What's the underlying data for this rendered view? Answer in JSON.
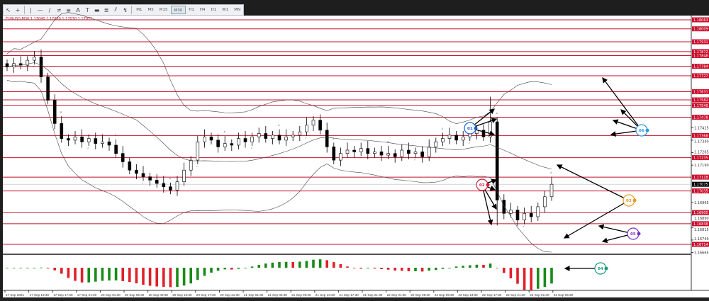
{
  "toolbar": {
    "tools": [
      {
        "icon": "cursor-icon",
        "glyph": "↖"
      },
      {
        "icon": "crosshair-icon",
        "glyph": "+"
      },
      {
        "icon": "vertical-line-icon",
        "glyph": "|"
      },
      {
        "icon": "horizontal-line-icon",
        "glyph": "—"
      },
      {
        "icon": "trendline-icon",
        "glyph": "/"
      },
      {
        "icon": "equidistant-channel-icon",
        "glyph": "≠"
      },
      {
        "icon": "fibonacci-icon",
        "glyph": "≡"
      },
      {
        "icon": "text-icon",
        "glyph": "A"
      },
      {
        "icon": "text-label-icon",
        "glyph": "T"
      },
      {
        "icon": "rectangle-icon",
        "glyph": "▬"
      },
      {
        "icon": "fibo-fan-icon",
        "glyph": "≣"
      },
      {
        "icon": "gann-icon",
        "glyph": "⫽"
      },
      {
        "icon": "arrows-icon",
        "glyph": "↯"
      }
    ],
    "timeframes": [
      "M1",
      "M5",
      "M15",
      "M30",
      "H1",
      "H4",
      "D1",
      "W1",
      "MN"
    ],
    "active_timeframe": "M30"
  },
  "chart": {
    "title": "EURUSD,M30  1.17040 1.17080 1.17030 1.17075",
    "current_price": "1.17075",
    "colors": {
      "level_line": "#c8102e",
      "level_label": "#c8102e",
      "bull": "#ffffff",
      "bear": "#000000",
      "osc_up": "#1a8a1a",
      "osc_down": "#e0202a",
      "current_label": "#000000"
    }
  },
  "chart_data": {
    "type": "candlestick",
    "symbol": "EURUSD",
    "timeframe": "M30",
    "ylim": [
      1.1664,
      1.1809
    ],
    "closes": [
      1.1778,
      1.178,
      1.1779,
      1.1782,
      1.1784,
      1.1772,
      1.1758,
      1.1744,
      1.1735,
      1.1734,
      1.1736,
      1.1733,
      1.1735,
      1.1732,
      1.1733,
      1.1731,
      1.1726,
      1.1721,
      1.1716,
      1.1714,
      1.1712,
      1.171,
      1.1708,
      1.1706,
      1.1704,
      1.1709,
      1.1716,
      1.1722,
      1.1733,
      1.1736,
      1.1734,
      1.173,
      1.1732,
      1.1731,
      1.1735,
      1.1733,
      1.1736,
      1.1738,
      1.1735,
      1.1737,
      1.1734,
      1.1736,
      1.1737,
      1.1739,
      1.1743,
      1.1746,
      1.174,
      1.173,
      1.1722,
      1.1726,
      1.1728,
      1.1727,
      1.1729,
      1.1726,
      1.1727,
      1.1725,
      1.1726,
      1.1724,
      1.1728,
      1.1726,
      1.1727,
      1.1724,
      1.173,
      1.1733,
      1.1735,
      1.1737,
      1.1734,
      1.1736,
      1.1738,
      1.174,
      1.1736,
      1.1745,
      1.1698,
      1.169,
      1.1692,
      1.1686,
      1.169,
      1.1688,
      1.1694,
      1.17,
      1.17075
    ],
    "levels": [
      "1.18063",
      "1.18009",
      "1.17931",
      "1.17872",
      "1.17848",
      "1.17784",
      "1.17727",
      "1.17631",
      "1.17582",
      "1.17549",
      "1.17478",
      "1.17368",
      "1.17235",
      "1.17118",
      "1.17035",
      "1.16905",
      "1.16838",
      "1.16714"
    ],
    "price_ticks": [
      "1.17415",
      "1.17340",
      "1.17265",
      "1.17190",
      "1.16965",
      "1.16890",
      "1.16815",
      "1.16740",
      "1.16665"
    ],
    "time_ticks": [
      "17 Sep 2021",
      "17 Sep 13:30",
      "17 Sep 17:30",
      "17 Sep 21:30",
      "20 Sep 01:30",
      "20 Sep 05:30",
      "20 Sep 09:30",
      "20 Sep 13:30",
      "20 Sep 17:30",
      "20 Sep 21:30",
      "21 Sep 01:30",
      "21 Sep 05:30",
      "21 Sep 09:30",
      "21 Sep 13:30",
      "21 Sep 17:30",
      "21 Sep 21:30",
      "22 Sep 01:30",
      "22 Sep 05:30",
      "22 Sep 09:30",
      "22 Sep 13:30",
      "22 Sep 17:30",
      "22 Sep 21:30",
      "23 Sep 01:30",
      "23 Sep 05:30"
    ],
    "indicators": [
      "Bollinger Bands",
      "Oscillator histogram"
    ]
  },
  "annotations": [
    {
      "label": "01",
      "color": "#1a5fd0"
    },
    {
      "label": "02",
      "color": "#d0203a"
    },
    {
      "label": "03",
      "color": "#e89a20"
    },
    {
      "label": "04",
      "color": "#1a9a7a"
    },
    {
      "label": "05",
      "color": "#7a30c0"
    },
    {
      "label": "06",
      "color": "#2a9ae0"
    }
  ]
}
